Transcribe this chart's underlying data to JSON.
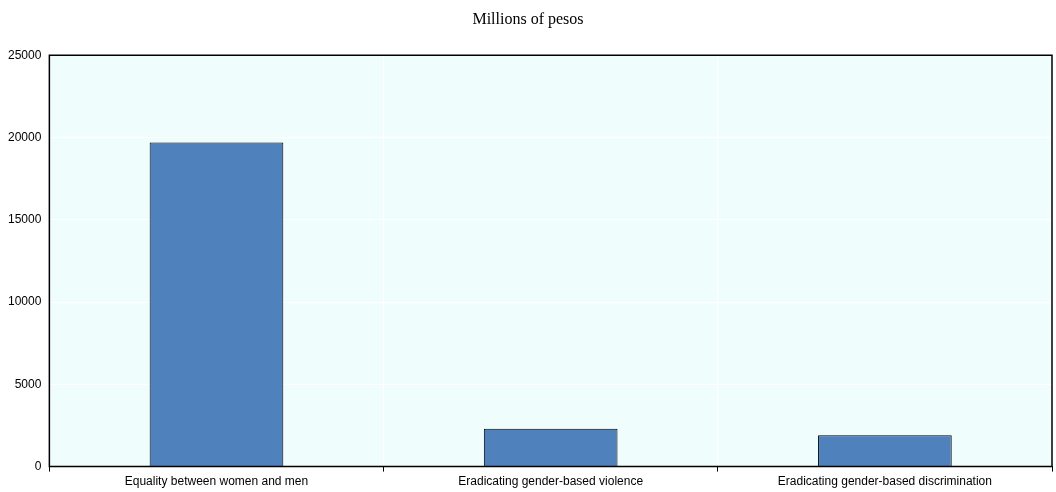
{
  "chart_data": {
    "type": "bar",
    "title": "Millions of pesos",
    "categories": [
      "Equality between women and men",
      "Eradicating gender-based violence",
      "Eradicating gender-based discrimination"
    ],
    "values": [
      19700,
      2300,
      1900
    ],
    "color": "#4f81bd",
    "ylim": [
      0,
      25000
    ],
    "yticks": [
      0,
      5000,
      10000,
      15000,
      20000,
      25000
    ],
    "grid": true
  }
}
